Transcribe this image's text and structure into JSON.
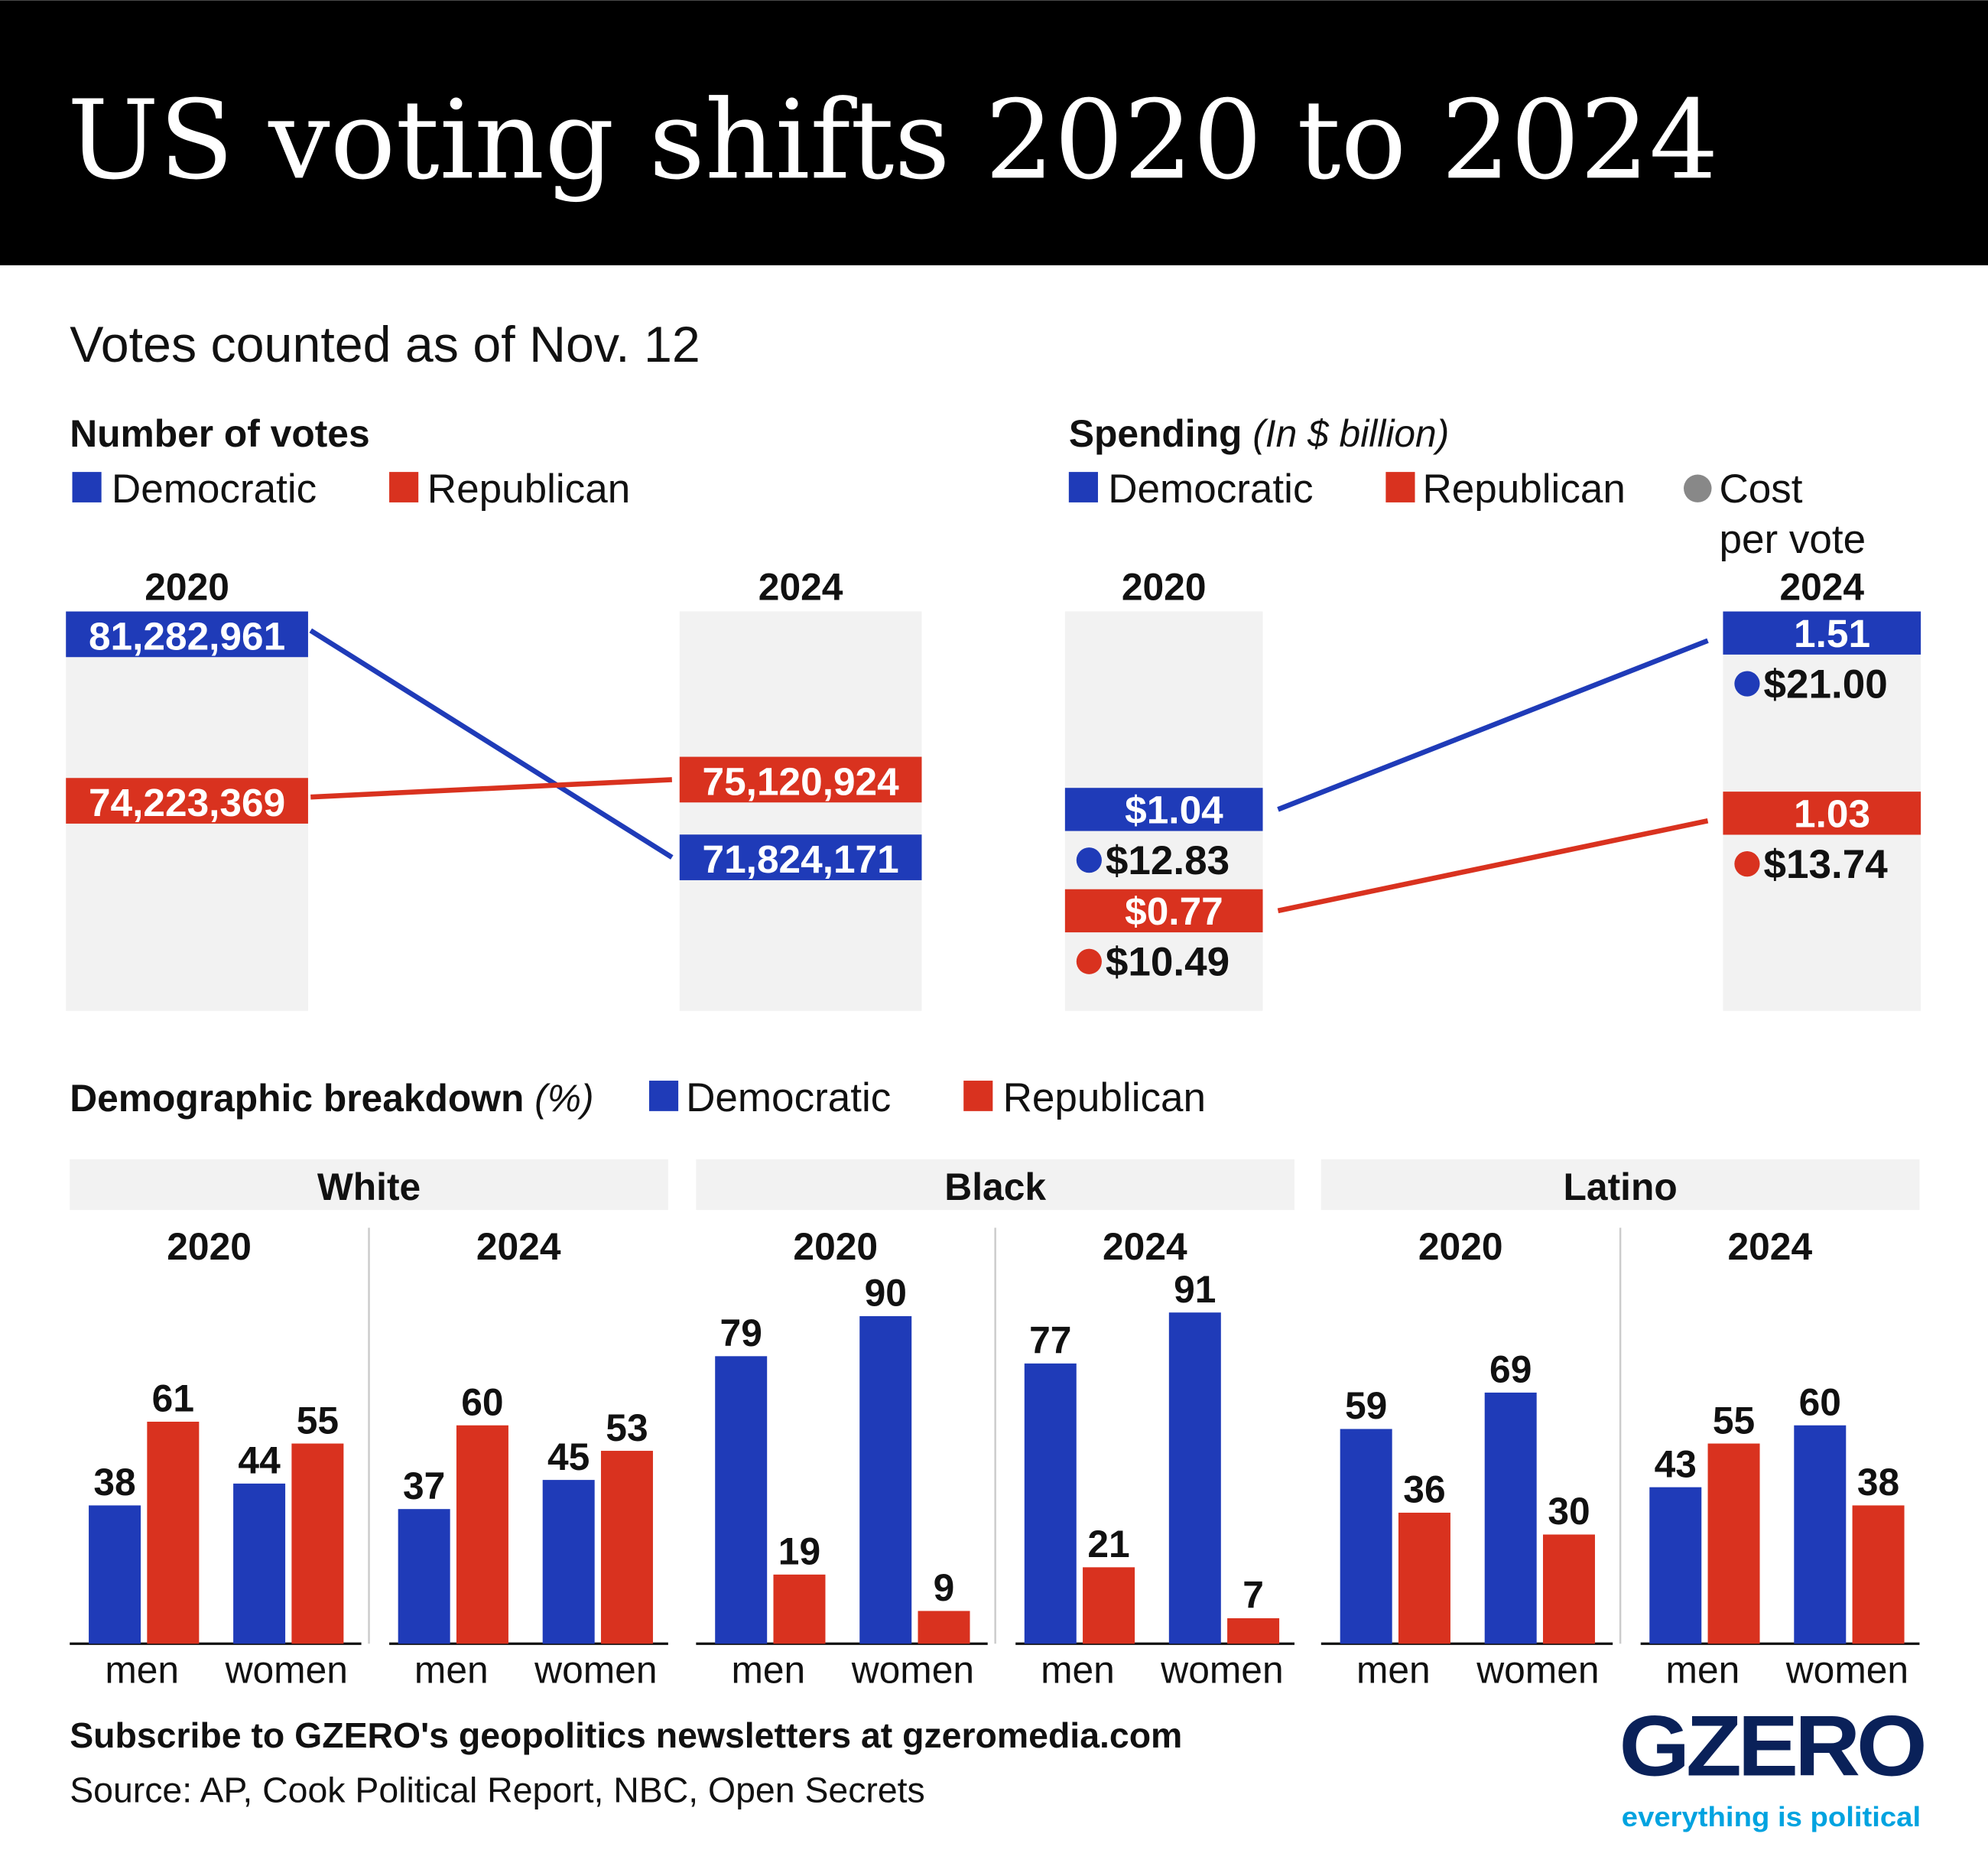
{
  "header": {
    "title": "US voting shifts 2020 to 2024"
  },
  "subtitle": "Votes counted as of Nov. 12",
  "colors": {
    "democratic": "#1f3bb8",
    "republican": "#d9321f",
    "cost_per_vote": "#888888",
    "panel_bg": "#f2f2f2",
    "header_bg": "#000000",
    "logo": "#0a2159",
    "tagline": "#00a3e0"
  },
  "legend": {
    "democratic": "Democratic",
    "republican": "Republican",
    "cost_line1": "Cost",
    "cost_line2": "per vote"
  },
  "chart_data": [
    {
      "type": "slope",
      "title": "Number of votes",
      "categories": [
        "2020",
        "2024"
      ],
      "series": [
        {
          "name": "Democratic",
          "values": [
            81282961,
            71824171
          ],
          "labels": [
            "81,282,961",
            "71,824,171"
          ]
        },
        {
          "name": "Republican",
          "values": [
            74223369,
            75120924
          ],
          "labels": [
            "74,223,369",
            "75,120,924"
          ]
        }
      ]
    },
    {
      "type": "slope",
      "title": "Spending",
      "unit": "(In $ billion)",
      "categories": [
        "2020",
        "2024"
      ],
      "series": [
        {
          "name": "Democratic",
          "values": [
            1.04,
            1.51
          ],
          "labels": [
            "$1.04",
            "1.51"
          ],
          "cost_per_vote": [
            "$12.83",
            "$21.00"
          ]
        },
        {
          "name": "Republican",
          "values": [
            0.77,
            1.03
          ],
          "labels": [
            "$0.77",
            "1.03"
          ],
          "cost_per_vote": [
            "$10.49",
            "$13.74"
          ]
        }
      ]
    },
    {
      "type": "bar",
      "title": "Demographic breakdown",
      "unit": "(%)",
      "categories": [
        "men",
        "women"
      ],
      "ylim": [
        0,
        100
      ],
      "groups": [
        {
          "name": "White",
          "years": [
            {
              "year": "2020",
              "democratic": [
                38,
                44
              ],
              "republican": [
                61,
                55
              ]
            },
            {
              "year": "2024",
              "democratic": [
                37,
                45
              ],
              "republican": [
                60,
                53
              ]
            }
          ]
        },
        {
          "name": "Black",
          "years": [
            {
              "year": "2020",
              "democratic": [
                79,
                90
              ],
              "republican": [
                19,
                9
              ]
            },
            {
              "year": "2024",
              "democratic": [
                77,
                91
              ],
              "republican": [
                21,
                7
              ]
            }
          ]
        },
        {
          "name": "Latino",
          "years": [
            {
              "year": "2020",
              "democratic": [
                59,
                69
              ],
              "republican": [
                36,
                30
              ]
            },
            {
              "year": "2024",
              "democratic": [
                43,
                60
              ],
              "republican": [
                55,
                38
              ]
            }
          ]
        }
      ]
    }
  ],
  "footer": {
    "subscribe": "Subscribe to GZERO's geopolitics newsletters at gzeromedia.com",
    "source": "Source: AP, Cook Political Report, NBC, Open Secrets",
    "logo": "GZERO",
    "tagline": "everything is political"
  }
}
